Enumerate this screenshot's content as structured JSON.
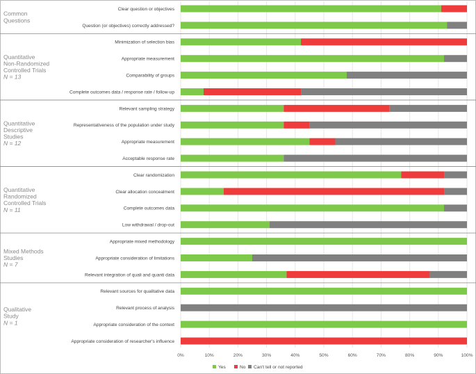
{
  "chart_data": {
    "type": "bar",
    "orientation": "horizontal",
    "stacked": true,
    "xlim": [
      0,
      100
    ],
    "x_ticks": [
      "0%",
      "10%",
      "20%",
      "30%",
      "40%",
      "50%",
      "60%",
      "70%",
      "80%",
      "90%",
      "100%"
    ],
    "legend": {
      "placement": "bottom",
      "entries": [
        {
          "name": "Yes",
          "color": "#7ec84a"
        },
        {
          "name": "No",
          "color": "#ee3b3b"
        },
        {
          "name": "Can't tell or not reported",
          "color": "#808080"
        }
      ]
    },
    "groups": [
      {
        "label_lines": [
          "Common",
          "Questions"
        ],
        "n": "",
        "rows": [
          {
            "label": "Clear question or objectives",
            "yes": 91,
            "no": 9,
            "cant": 0
          },
          {
            "label": "Question (or objectives) correctly addressed?",
            "yes": 93,
            "no": 0,
            "cant": 7
          }
        ]
      },
      {
        "label_lines": [
          "Quantitative",
          "Non-Randomized",
          "Controlled Trials"
        ],
        "n": "N = 13",
        "rows": [
          {
            "label": "Minimization of selection bias",
            "yes": 42,
            "no": 58,
            "cant": 0
          },
          {
            "label": "Appropriate measurement",
            "yes": 92,
            "no": 0,
            "cant": 8
          },
          {
            "label": "Comparability of groups",
            "yes": 58,
            "no": 0,
            "cant": 42
          },
          {
            "label": "Complete outcomes data / response rate / follow-up",
            "yes": 8,
            "no": 34,
            "cant": 58
          }
        ]
      },
      {
        "label_lines": [
          "Quantitative",
          "Descriptive",
          "Studies"
        ],
        "n": "N = 12",
        "rows": [
          {
            "label": "Relevant sampling strategy",
            "yes": 36,
            "no": 37,
            "cant": 27
          },
          {
            "label": "Representativeness of the population under study",
            "yes": 36,
            "no": 9,
            "cant": 55
          },
          {
            "label": "Appropriate measurement",
            "yes": 45,
            "no": 9,
            "cant": 46
          },
          {
            "label": "Acceptable response rate",
            "yes": 36,
            "no": 0,
            "cant": 64
          }
        ]
      },
      {
        "label_lines": [
          "Quantitative",
          "Randomized",
          "Controlled Trials"
        ],
        "n": "N = 11",
        "rows": [
          {
            "label": "Clear randomization",
            "yes": 77,
            "no": 15,
            "cant": 8
          },
          {
            "label": "Clear allocation concealment",
            "yes": 15,
            "no": 77,
            "cant": 8
          },
          {
            "label": "Complete outcomes data",
            "yes": 92,
            "no": 0,
            "cant": 8
          },
          {
            "label": "Low withdrawal / drop-out",
            "yes": 31,
            "no": 0,
            "cant": 69
          }
        ]
      },
      {
        "label_lines": [
          "Mixed Methods",
          "Studies"
        ],
        "n": "N = 7",
        "rows": [
          {
            "label": "Appropriate mixed methodology",
            "yes": 100,
            "no": 0,
            "cant": 0
          },
          {
            "label": "Appropriate consideration of limitations",
            "yes": 25,
            "no": 0,
            "cant": 75
          },
          {
            "label": "Relevant integration of quali and quanti data",
            "yes": 37,
            "no": 50,
            "cant": 13
          }
        ]
      },
      {
        "label_lines": [
          "Qualitative",
          "Study"
        ],
        "n": "N = 1",
        "rows": [
          {
            "label": "Relevant sources for qualitative data",
            "yes": 100,
            "no": 0,
            "cant": 0
          },
          {
            "label": "Relevant process of analysis",
            "yes": 0,
            "no": 0,
            "cant": 100
          },
          {
            "label": "Appropriate consideration of the context",
            "yes": 100,
            "no": 0,
            "cant": 0
          },
          {
            "label": "Appropriate consideration of researcher's influence",
            "yes": 0,
            "no": 100,
            "cant": 0
          }
        ]
      }
    ]
  }
}
